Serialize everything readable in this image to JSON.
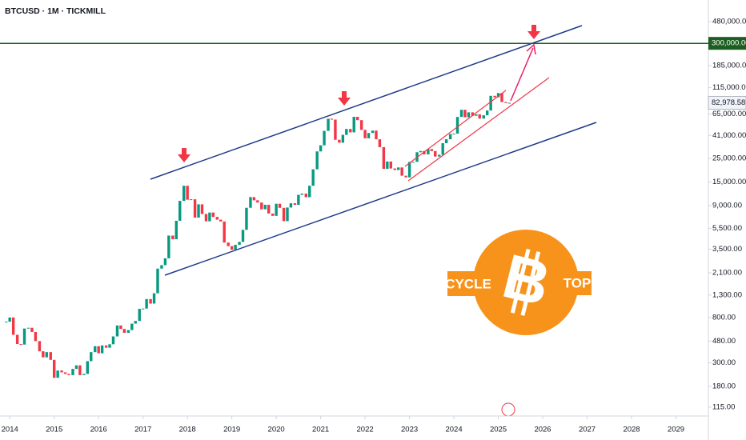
{
  "chart_data": {
    "type": "candlestick",
    "title": "BTCUSD · 1M · TICKMILL",
    "log_scale": true,
    "up_color": "#089981",
    "down_color": "#f23645",
    "xlim": [
      2013.78,
      2029.73
    ],
    "xticks": [
      2014,
      2015,
      2016,
      2017,
      2018,
      2019,
      2020,
      2021,
      2022,
      2023,
      2024,
      2025,
      2026,
      2027,
      2028,
      2029
    ],
    "ylim": [
      95,
      766000
    ],
    "yticks": [
      {
        "value": 480000,
        "label": "480,000.00"
      },
      {
        "value": 185000,
        "label": "185,000.00"
      },
      {
        "value": 115000,
        "label": "115,000.00"
      },
      {
        "value": 65000,
        "label": "65,000.00"
      },
      {
        "value": 41000,
        "label": "41,000.00"
      },
      {
        "value": 25000,
        "label": "25,000.00"
      },
      {
        "value": 15000,
        "label": "15,000.00"
      },
      {
        "value": 9000,
        "label": "9,000.00"
      },
      {
        "value": 5500,
        "label": "5,500.00"
      },
      {
        "value": 3500,
        "label": "3,500.00"
      },
      {
        "value": 2100,
        "label": "2,100.00"
      },
      {
        "value": 1300,
        "label": "1,300.00"
      },
      {
        "value": 800,
        "label": "800.00"
      },
      {
        "value": 480,
        "label": "480.00"
      },
      {
        "value": 300,
        "label": "300.00"
      },
      {
        "value": 180,
        "label": "180.00"
      },
      {
        "value": 115,
        "label": "115.00"
      }
    ],
    "target_line": {
      "value": 300000,
      "label": "300,000.00",
      "color": "#1b5e20"
    },
    "last_price": {
      "value": 82978.58,
      "label": "82,978.58"
    },
    "annotations": [
      "CYCLE",
      "TOP"
    ],
    "logo_letter": "B",
    "x": [
      2013.92,
      2014.0,
      2014.08,
      2014.17,
      2014.25,
      2014.33,
      2014.42,
      2014.5,
      2014.58,
      2014.67,
      2014.75,
      2014.83,
      2014.92,
      2015.0,
      2015.08,
      2015.17,
      2015.25,
      2015.33,
      2015.42,
      2015.5,
      2015.58,
      2015.67,
      2015.75,
      2015.83,
      2015.92,
      2016.0,
      2016.08,
      2016.17,
      2016.25,
      2016.33,
      2016.42,
      2016.5,
      2016.58,
      2016.67,
      2016.75,
      2016.83,
      2016.92,
      2017.0,
      2017.08,
      2017.17,
      2017.25,
      2017.33,
      2017.42,
      2017.5,
      2017.58,
      2017.67,
      2017.75,
      2017.83,
      2017.92,
      2018.0,
      2018.08,
      2018.17,
      2018.25,
      2018.33,
      2018.42,
      2018.5,
      2018.58,
      2018.67,
      2018.75,
      2018.83,
      2018.92,
      2019.0,
      2019.08,
      2019.17,
      2019.25,
      2019.33,
      2019.42,
      2019.5,
      2019.58,
      2019.67,
      2019.75,
      2019.83,
      2019.92,
      2020.0,
      2020.08,
      2020.17,
      2020.25,
      2020.33,
      2020.42,
      2020.5,
      2020.58,
      2020.67,
      2020.75,
      2020.83,
      2020.92,
      2021.0,
      2021.08,
      2021.17,
      2021.25,
      2021.33,
      2021.42,
      2021.5,
      2021.58,
      2021.67,
      2021.75,
      2021.83,
      2021.92,
      2022.0,
      2022.08,
      2022.17,
      2022.25,
      2022.33,
      2022.42,
      2022.5,
      2022.58,
      2022.67,
      2022.75,
      2022.83,
      2022.92,
      2023.0,
      2023.08,
      2023.17,
      2023.25,
      2023.33,
      2023.42,
      2023.5,
      2023.58,
      2023.67,
      2023.75,
      2023.83,
      2023.92,
      2024.0,
      2024.08,
      2024.17,
      2024.25,
      2024.33,
      2024.42,
      2024.5,
      2024.58,
      2024.67,
      2024.75,
      2024.83,
      2024.92,
      2025.0,
      2025.08,
      2025.17,
      2025.25
    ],
    "values": [
      730,
      800,
      550,
      450,
      445,
      630,
      640,
      585,
      480,
      385,
      338,
      378,
      320,
      217,
      254,
      244,
      236,
      230,
      263,
      284,
      230,
      236,
      311,
      378,
      430,
      369,
      437,
      416,
      448,
      531,
      673,
      624,
      574,
      609,
      700,
      742,
      964,
      970,
      1190,
      1080,
      1350,
      2300,
      2480,
      2875,
      4700,
      4340,
      6470,
      9950,
      13800,
      10200,
      10300,
      6930,
      9240,
      7500,
      6400,
      7730,
      7030,
      6630,
      6370,
      4040,
      3740,
      3460,
      3850,
      4100,
      5320,
      8570,
      10800,
      10080,
      9600,
      8300,
      9150,
      7570,
      7200,
      9350,
      8560,
      6420,
      8620,
      9450,
      9140,
      11350,
      11650,
      10780,
      13800,
      19700,
      29000,
      33100,
      45200,
      58800,
      57700,
      37300,
      35000,
      41500,
      47100,
      43800,
      61300,
      57000,
      46200,
      38500,
      43200,
      45500,
      37700,
      31800,
      19900,
      23300,
      20050,
      19400,
      20500,
      17150,
      16550,
      23100,
      23150,
      28500,
      29250,
      27200,
      30480,
      29230,
      25940,
      26970,
      34650,
      37720,
      42280,
      42580,
      61130,
      71330,
      60670,
      67530,
      62680,
      64620,
      58970,
      63330,
      70220,
      96450,
      93430,
      102400,
      84350,
      82550,
      82978.58
    ]
  }
}
